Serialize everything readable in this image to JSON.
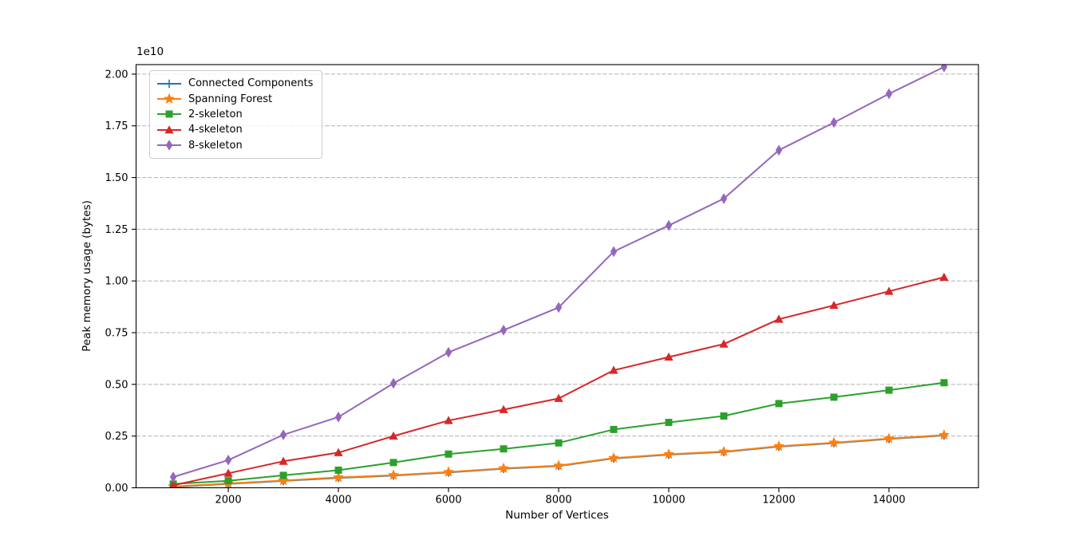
{
  "figure": {
    "background": "#ffffff"
  },
  "chart_data": {
    "type": "line",
    "title": "",
    "xlabel": "Number of Vertices",
    "ylabel": "Peak memory usage (bytes)",
    "y_offset_text": "1e10",
    "grid": {
      "axis": "y",
      "style": "dashed",
      "color": "#b0b0b0"
    },
    "legend": {
      "position": "upper-left"
    },
    "xlim": [
      325,
      15625
    ],
    "ylim": [
      0,
      20460000000.0
    ],
    "x": [
      1000,
      2000,
      3000,
      4000,
      5000,
      6000,
      7000,
      8000,
      9000,
      10000,
      11000,
      12000,
      13000,
      14000,
      15000
    ],
    "x_ticks": {
      "values": [
        2000,
        4000,
        6000,
        8000,
        10000,
        12000,
        14000
      ],
      "labels": [
        "2000",
        "4000",
        "6000",
        "8000",
        "10000",
        "12000",
        "14000"
      ]
    },
    "y_ticks": {
      "values": [
        0,
        2500000000.0,
        5000000000.0,
        7500000000.0,
        10000000000.0,
        12500000000.0,
        15000000000.0,
        17500000000.0,
        20000000000.0
      ],
      "labels": [
        "0.00",
        "0.25",
        "0.50",
        "0.75",
        "1.00",
        "1.25",
        "1.50",
        "1.75",
        "2.00"
      ]
    },
    "series": [
      {
        "name": "Connected Components",
        "color": "#1f77b4",
        "marker": "plus",
        "values": [
          40000000.0,
          190000000.0,
          330000000.0,
          480000000.0,
          590000000.0,
          740000000.0,
          920000000.0,
          1050000000.0,
          1420000000.0,
          1600000000.0,
          1730000000.0,
          1990000000.0,
          2160000000.0,
          2360000000.0,
          2530000000.0
        ]
      },
      {
        "name": "Spanning Forest",
        "color": "#ff7f0e",
        "marker": "star",
        "values": [
          60000000.0,
          210000000.0,
          350000000.0,
          500000000.0,
          610000000.0,
          760000000.0,
          940000000.0,
          1070000000.0,
          1440000000.0,
          1620000000.0,
          1750000000.0,
          2010000000.0,
          2180000000.0,
          2380000000.0,
          2550000000.0
        ]
      },
      {
        "name": "2-skeleton",
        "color": "#2ca02c",
        "marker": "square",
        "values": [
          180000000.0,
          340000000.0,
          600000000.0,
          850000000.0,
          1220000000.0,
          1630000000.0,
          1880000000.0,
          2170000000.0,
          2820000000.0,
          3160000000.0,
          3470000000.0,
          4070000000.0,
          4380000000.0,
          4720000000.0,
          5080000000.0
        ]
      },
      {
        "name": "4-skeleton",
        "color": "#d62728",
        "marker": "triangle-up",
        "values": [
          120000000.0,
          700000000.0,
          1280000000.0,
          1700000000.0,
          2500000000.0,
          3250000000.0,
          3780000000.0,
          4320000000.0,
          5680000000.0,
          6320000000.0,
          6950000000.0,
          8150000000.0,
          8820000000.0,
          9500000000.0,
          10180000000.0
        ]
      },
      {
        "name": "8-skeleton",
        "color": "#9467bd",
        "marker": "diamond",
        "values": [
          520000000.0,
          1340000000.0,
          2560000000.0,
          3420000000.0,
          5050000000.0,
          6550000000.0,
          7620000000.0,
          8720000000.0,
          11420000000.0,
          12680000000.0,
          13980000000.0,
          16320000000.0,
          17660000000.0,
          19050000000.0,
          20350000000.0
        ]
      }
    ]
  }
}
